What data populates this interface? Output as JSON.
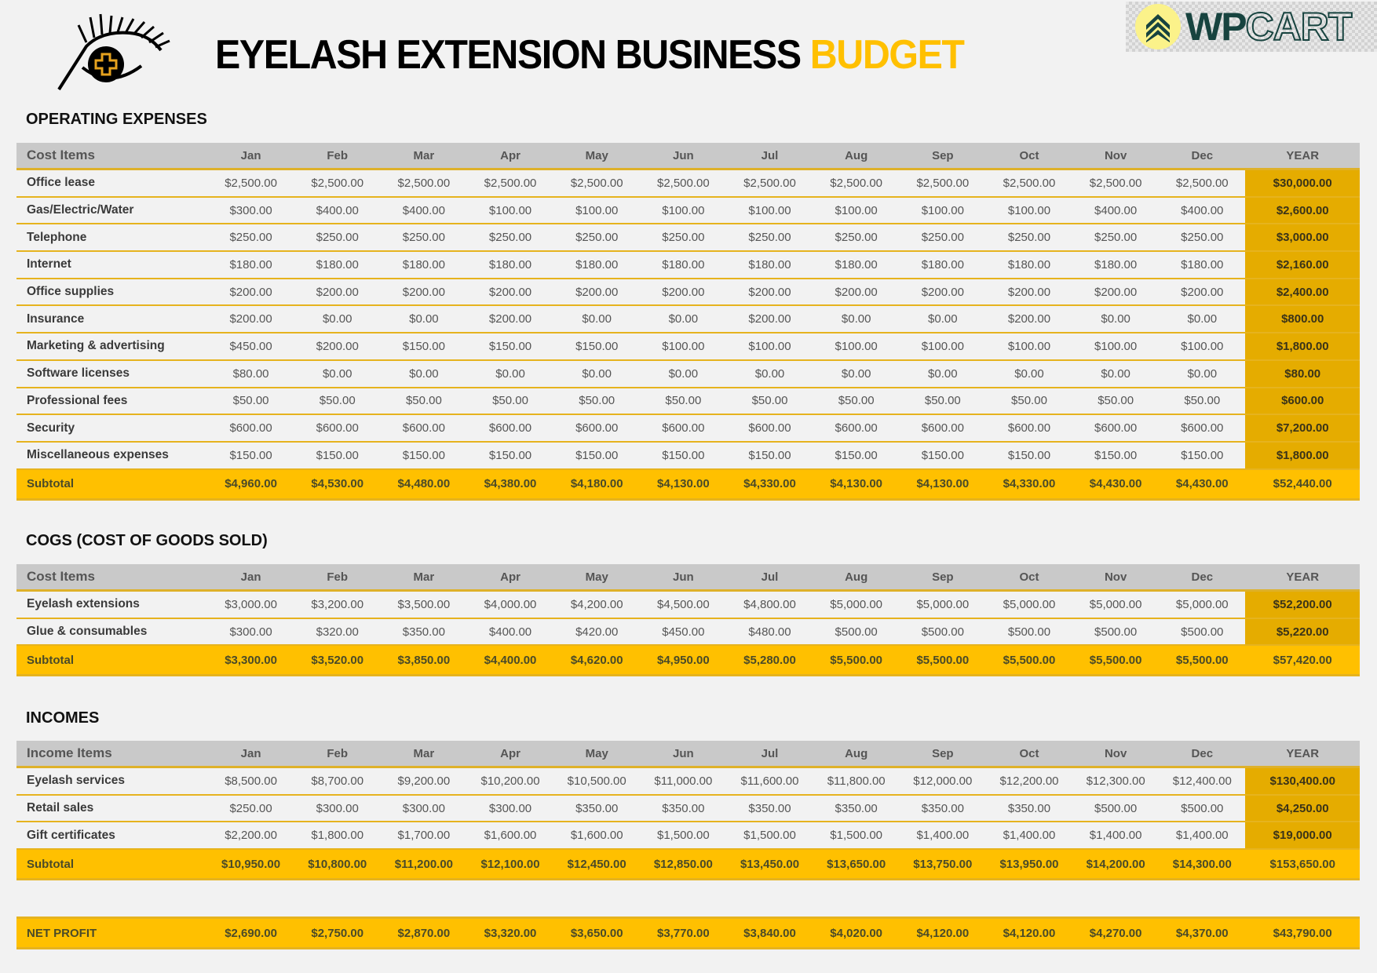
{
  "header": {
    "title_main": "EYELASH EXTENSION BUSINESS",
    "title_accent": "BUDGET",
    "brand_left": "WP",
    "brand_right": "CART",
    "logo_icon": "eye-with-lashes-icon",
    "accent_color": "#ffc000"
  },
  "columns": [
    "Jan",
    "Feb",
    "Mar",
    "Apr",
    "May",
    "Jun",
    "Jul",
    "Aug",
    "Sep",
    "Oct",
    "Nov",
    "Dec",
    "YEAR"
  ],
  "operating": {
    "title": "OPERATING EXPENSES",
    "label_header": "Cost Items",
    "rows": [
      {
        "label": "Office lease",
        "values": [
          "$2,500.00",
          "$2,500.00",
          "$2,500.00",
          "$2,500.00",
          "$2,500.00",
          "$2,500.00",
          "$2,500.00",
          "$2,500.00",
          "$2,500.00",
          "$2,500.00",
          "$2,500.00",
          "$2,500.00"
        ],
        "year": "$30,000.00"
      },
      {
        "label": "Gas/Electric/Water",
        "values": [
          "$300.00",
          "$400.00",
          "$400.00",
          "$100.00",
          "$100.00",
          "$100.00",
          "$100.00",
          "$100.00",
          "$100.00",
          "$100.00",
          "$400.00",
          "$400.00"
        ],
        "year": "$2,600.00"
      },
      {
        "label": "Telephone",
        "values": [
          "$250.00",
          "$250.00",
          "$250.00",
          "$250.00",
          "$250.00",
          "$250.00",
          "$250.00",
          "$250.00",
          "$250.00",
          "$250.00",
          "$250.00",
          "$250.00"
        ],
        "year": "$3,000.00"
      },
      {
        "label": "Internet",
        "values": [
          "$180.00",
          "$180.00",
          "$180.00",
          "$180.00",
          "$180.00",
          "$180.00",
          "$180.00",
          "$180.00",
          "$180.00",
          "$180.00",
          "$180.00",
          "$180.00"
        ],
        "year": "$2,160.00"
      },
      {
        "label": "Office supplies",
        "values": [
          "$200.00",
          "$200.00",
          "$200.00",
          "$200.00",
          "$200.00",
          "$200.00",
          "$200.00",
          "$200.00",
          "$200.00",
          "$200.00",
          "$200.00",
          "$200.00"
        ],
        "year": "$2,400.00"
      },
      {
        "label": "Insurance",
        "values": [
          "$200.00",
          "$0.00",
          "$0.00",
          "$200.00",
          "$0.00",
          "$0.00",
          "$200.00",
          "$0.00",
          "$0.00",
          "$200.00",
          "$0.00",
          "$0.00"
        ],
        "year": "$800.00"
      },
      {
        "label": "Marketing & advertising",
        "values": [
          "$450.00",
          "$200.00",
          "$150.00",
          "$150.00",
          "$150.00",
          "$100.00",
          "$100.00",
          "$100.00",
          "$100.00",
          "$100.00",
          "$100.00",
          "$100.00"
        ],
        "year": "$1,800.00"
      },
      {
        "label": "Software licenses",
        "values": [
          "$80.00",
          "$0.00",
          "$0.00",
          "$0.00",
          "$0.00",
          "$0.00",
          "$0.00",
          "$0.00",
          "$0.00",
          "$0.00",
          "$0.00",
          "$0.00"
        ],
        "year": "$80.00"
      },
      {
        "label": "Professional fees",
        "values": [
          "$50.00",
          "$50.00",
          "$50.00",
          "$50.00",
          "$50.00",
          "$50.00",
          "$50.00",
          "$50.00",
          "$50.00",
          "$50.00",
          "$50.00",
          "$50.00"
        ],
        "year": "$600.00"
      },
      {
        "label": "Security",
        "values": [
          "$600.00",
          "$600.00",
          "$600.00",
          "$600.00",
          "$600.00",
          "$600.00",
          "$600.00",
          "$600.00",
          "$600.00",
          "$600.00",
          "$600.00",
          "$600.00"
        ],
        "year": "$7,200.00"
      },
      {
        "label": "Miscellaneous expenses",
        "values": [
          "$150.00",
          "$150.00",
          "$150.00",
          "$150.00",
          "$150.00",
          "$150.00",
          "$150.00",
          "$150.00",
          "$150.00",
          "$150.00",
          "$150.00",
          "$150.00"
        ],
        "year": "$1,800.00"
      }
    ],
    "subtotal": {
      "label": "Subtotal",
      "values": [
        "$4,960.00",
        "$4,530.00",
        "$4,480.00",
        "$4,380.00",
        "$4,180.00",
        "$4,130.00",
        "$4,330.00",
        "$4,130.00",
        "$4,130.00",
        "$4,330.00",
        "$4,430.00",
        "$4,430.00"
      ],
      "year": "$52,440.00"
    }
  },
  "cogs": {
    "title": "COGS (COST OF GOODS SOLD)",
    "label_header": "Cost Items",
    "rows": [
      {
        "label": "Eyelash extensions",
        "values": [
          "$3,000.00",
          "$3,200.00",
          "$3,500.00",
          "$4,000.00",
          "$4,200.00",
          "$4,500.00",
          "$4,800.00",
          "$5,000.00",
          "$5,000.00",
          "$5,000.00",
          "$5,000.00",
          "$5,000.00"
        ],
        "year": "$52,200.00"
      },
      {
        "label": "Glue & consumables",
        "values": [
          "$300.00",
          "$320.00",
          "$350.00",
          "$400.00",
          "$420.00",
          "$450.00",
          "$480.00",
          "$500.00",
          "$500.00",
          "$500.00",
          "$500.00",
          "$500.00"
        ],
        "year": "$5,220.00"
      }
    ],
    "subtotal": {
      "label": "Subtotal",
      "values": [
        "$3,300.00",
        "$3,520.00",
        "$3,850.00",
        "$4,400.00",
        "$4,620.00",
        "$4,950.00",
        "$5,280.00",
        "$5,500.00",
        "$5,500.00",
        "$5,500.00",
        "$5,500.00",
        "$5,500.00"
      ],
      "year": "$57,420.00"
    }
  },
  "incomes": {
    "title": "INCOMES",
    "label_header": "Income Items",
    "rows": [
      {
        "label": "Eyelash services",
        "values": [
          "$8,500.00",
          "$8,700.00",
          "$9,200.00",
          "$10,200.00",
          "$10,500.00",
          "$11,000.00",
          "$11,600.00",
          "$11,800.00",
          "$12,000.00",
          "$12,200.00",
          "$12,300.00",
          "$12,400.00"
        ],
        "year": "$130,400.00"
      },
      {
        "label": "Retail sales",
        "values": [
          "$250.00",
          "$300.00",
          "$300.00",
          "$300.00",
          "$350.00",
          "$350.00",
          "$350.00",
          "$350.00",
          "$350.00",
          "$350.00",
          "$500.00",
          "$500.00"
        ],
        "year": "$4,250.00"
      },
      {
        "label": "Gift certificates",
        "values": [
          "$2,200.00",
          "$1,800.00",
          "$1,700.00",
          "$1,600.00",
          "$1,600.00",
          "$1,500.00",
          "$1,500.00",
          "$1,500.00",
          "$1,400.00",
          "$1,400.00",
          "$1,400.00",
          "$1,400.00"
        ],
        "year": "$19,000.00"
      }
    ],
    "subtotal": {
      "label": "Subtotal",
      "values": [
        "$10,950.00",
        "$10,800.00",
        "$11,200.00",
        "$12,100.00",
        "$12,450.00",
        "$12,850.00",
        "$13,450.00",
        "$13,650.00",
        "$13,750.00",
        "$13,950.00",
        "$14,200.00",
        "$14,300.00"
      ],
      "year": "$153,650.00"
    }
  },
  "net_profit": {
    "label": "NET PROFIT",
    "values": [
      "$2,690.00",
      "$2,750.00",
      "$2,870.00",
      "$3,320.00",
      "$3,650.00",
      "$3,770.00",
      "$3,840.00",
      "$4,020.00",
      "$4,120.00",
      "$4,120.00",
      "$4,270.00",
      "$4,370.00"
    ],
    "year": "$43,790.00"
  }
}
